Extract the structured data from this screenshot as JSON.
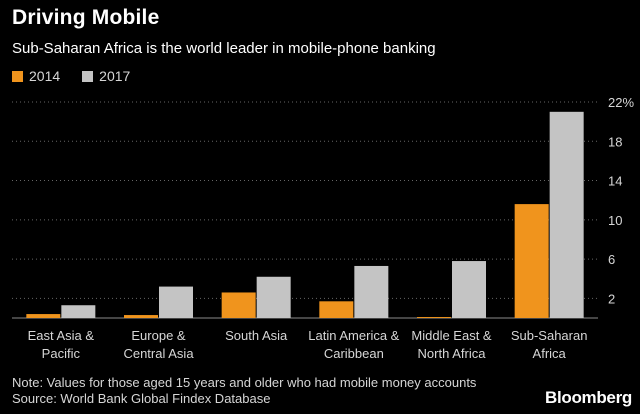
{
  "header": {
    "title": "Driving Mobile",
    "subtitle": "Sub-Saharan Africa is the world leader in mobile-phone banking"
  },
  "legend": [
    {
      "label": "2014",
      "color": "#f0941d"
    },
    {
      "label": "2017",
      "color": "#c4c4c4"
    }
  ],
  "footer": {
    "note": "Note: Values for those aged 15 years and older who had mobile money accounts",
    "source": "Source: World Bank Global Findex Database",
    "brand": "Bloomberg"
  },
  "chart_data": {
    "type": "bar",
    "title": "Driving Mobile",
    "subtitle": "Sub-Saharan Africa is the world leader in mobile-phone banking",
    "categories": [
      [
        "East Asia &",
        "Pacific"
      ],
      [
        "Europe &",
        "Central Asia"
      ],
      [
        "South Asia"
      ],
      [
        "Latin America &",
        "Caribbean"
      ],
      [
        "Middle East &",
        "North Africa"
      ],
      [
        "Sub-Saharan",
        "Africa"
      ]
    ],
    "series": [
      {
        "name": "2014",
        "color": "#f0941d",
        "values": [
          0.4,
          0.3,
          2.6,
          1.7,
          0.1,
          11.6
        ]
      },
      {
        "name": "2017",
        "color": "#c4c4c4",
        "values": [
          1.3,
          3.2,
          4.2,
          5.3,
          5.8,
          21.0
        ]
      }
    ],
    "yticks": [
      2,
      6,
      10,
      14,
      18,
      22
    ],
    "ytick_labels": [
      "2",
      "6",
      "10",
      "14",
      "18",
      "22%"
    ],
    "ylim": [
      0,
      22
    ],
    "ylabel": "",
    "xlabel": "",
    "grid": true,
    "axis_side": "right",
    "legend_position": "top-left"
  }
}
